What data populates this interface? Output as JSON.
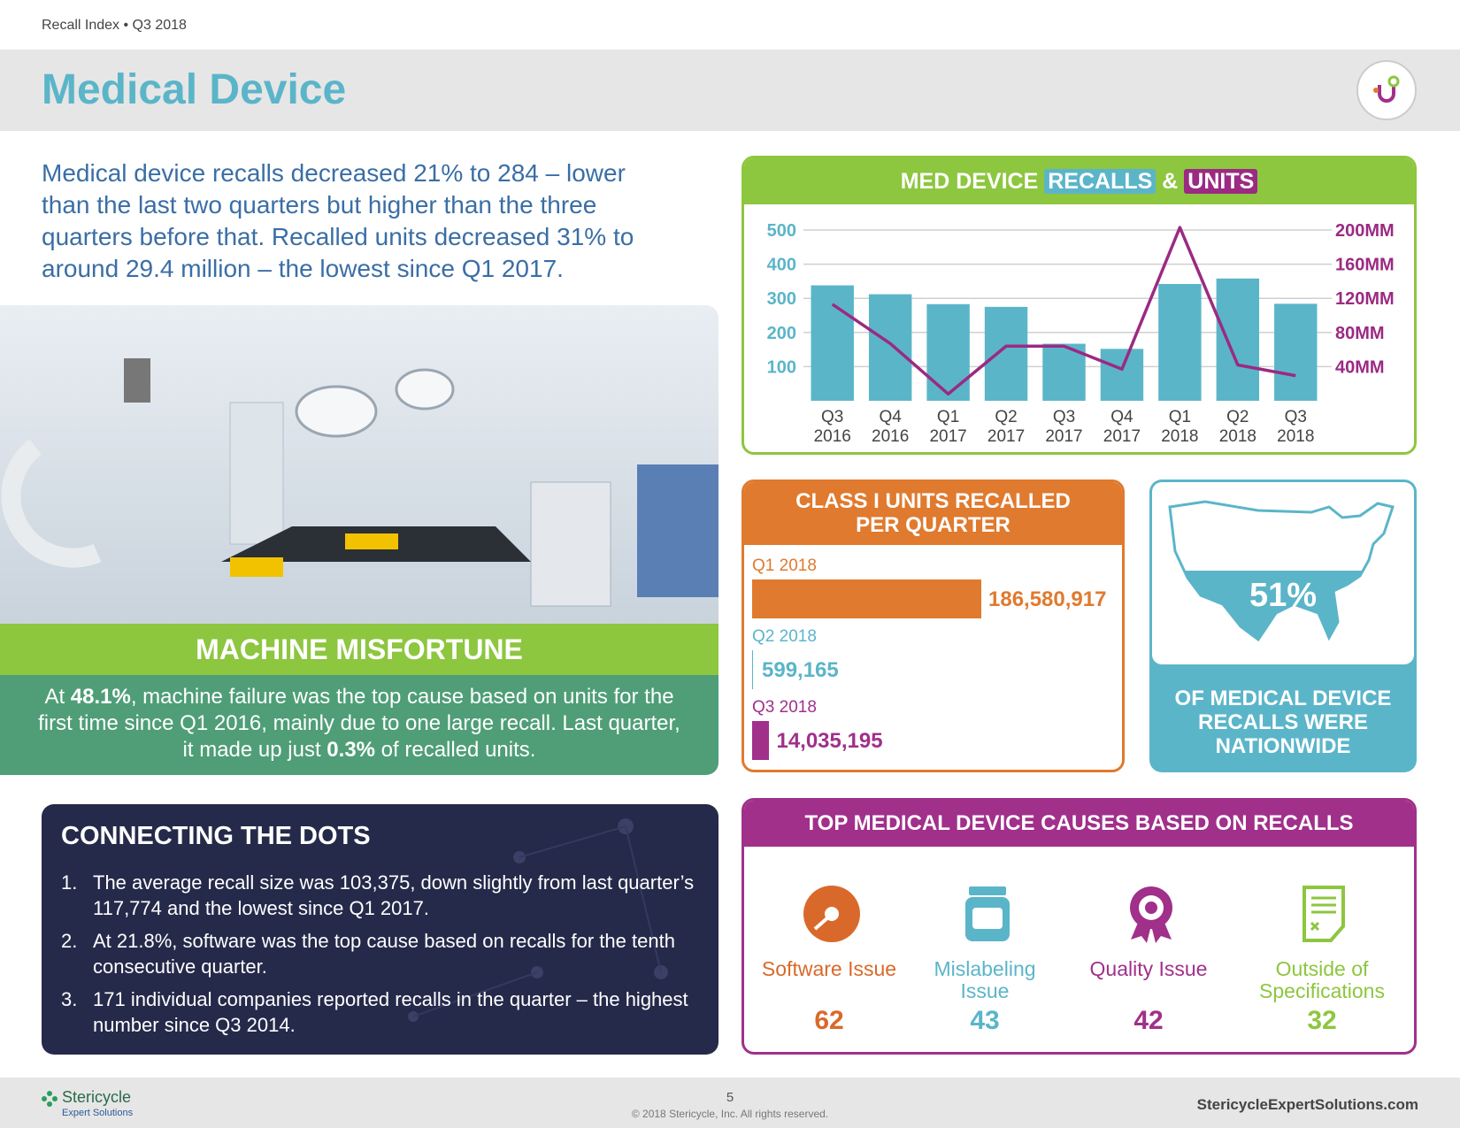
{
  "header": {
    "breadcrumb": "Recall Index • Q3 2018",
    "title": "Medical Device"
  },
  "intro": "Medical device recalls decreased 21% to 284 – lower than the last two quarters but higher than the three quarters before that. Recalled units decreased 31% to around 29.4 million – the lowest since Q1 2017.",
  "feature": {
    "title": "MACHINE MISFORTUNE",
    "body": [
      "At ",
      "48.1%",
      ", machine failure was the top cause based on units for the first time since Q1 2016, mainly due to one large recall. Last quarter, it made up just ",
      "0.3%",
      " of recalled units."
    ]
  },
  "dots": {
    "title": "CONNECTING THE DOTS",
    "items": [
      {
        "num": "1.",
        "text": "The average recall size was 103,375, down slightly from last quarter’s 117,774 and the lowest since Q1 2017."
      },
      {
        "num": "2.",
        "text": "At 21.8%, software was the top cause based on recalls for the tenth consecutive quarter."
      },
      {
        "num": "3.",
        "text": "171 individual companies reported recalls in the quarter – the highest number since Q3 2014."
      }
    ]
  },
  "chart_data": [
    {
      "type": "bar_line",
      "title": "MED DEVICE",
      "connector": "&",
      "categories": [
        "Q3 2016",
        "Q4 2016",
        "Q1 2017",
        "Q2 2017",
        "Q3 2017",
        "Q4 2017",
        "Q1 2018",
        "Q2 2018",
        "Q3 2018"
      ],
      "series": [
        {
          "name": "RECALLS",
          "type": "bar",
          "color": "#5bb5c9",
          "values": [
            338,
            312,
            283,
            275,
            167,
            152,
            342,
            358,
            284
          ]
        },
        {
          "name": "UNITS",
          "type": "line",
          "axis": "y2",
          "color": "#9b2a83",
          "values": [
            113,
            67,
            8,
            64,
            64,
            37,
            203,
            42,
            29.4
          ]
        }
      ],
      "ylim": [
        0,
        500
      ],
      "yticks": [
        100,
        200,
        300,
        400,
        500
      ],
      "y2lim": [
        0,
        200
      ],
      "y2ticks": [
        {
          "value": 40,
          "label": "40MM"
        },
        {
          "value": 80,
          "label": "80MM"
        },
        {
          "value": 120,
          "label": "120MM"
        },
        {
          "value": 160,
          "label": "160MM"
        },
        {
          "value": 200,
          "label": "200MM"
        }
      ],
      "grid": true
    },
    {
      "type": "hbar",
      "title": "CLASS I UNITS RECALLED PER QUARTER",
      "categories": [
        "Q1 2018",
        "Q2 2018",
        "Q3 2018"
      ],
      "values": [
        186580917,
        599165,
        14035195
      ],
      "value_labels": [
        "186,580,917",
        "599,165",
        "14,035,195"
      ],
      "colors": [
        "#e07a2e",
        "#5bb5c9",
        "#a0308a"
      ]
    }
  ],
  "nationwide": {
    "value": "51%",
    "caption": "OF MEDICAL DEVICE RECALLS WERE NATIONWIDE"
  },
  "causes": {
    "title": "TOP MEDICAL DEVICE CAUSES BASED ON RECALLS",
    "items": [
      {
        "label": "Software Issue",
        "count": 62,
        "color": "#d9692a"
      },
      {
        "label": "Mislabeling Issue",
        "count": 43,
        "color": "#5bb5c9"
      },
      {
        "label": "Quality Issue",
        "count": 42,
        "color": "#a0308a"
      },
      {
        "label": "Outside of Specifications",
        "count": 32,
        "color": "#8dc63f"
      }
    ]
  },
  "footer": {
    "brand": "Stericycle",
    "sub_brand": "Expert Solutions",
    "page": 5,
    "copyright": "© 2018 Stericycle, Inc. All rights reserved.",
    "url": "StericycleExpertSolutions.com"
  }
}
